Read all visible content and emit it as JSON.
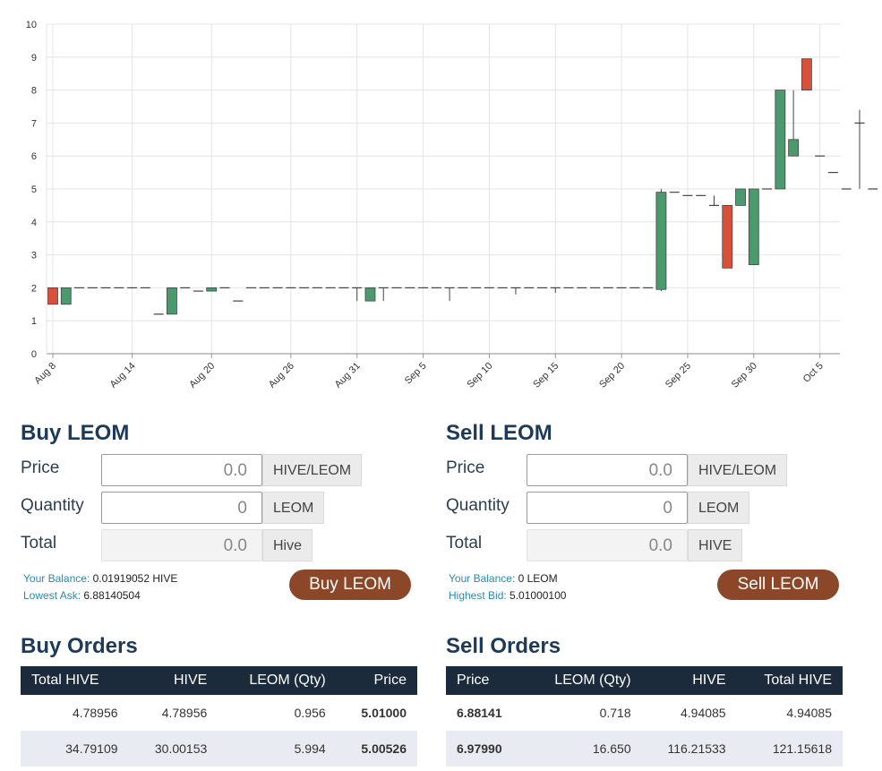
{
  "chart_data": {
    "type": "candlestick",
    "y_ticks": [
      "0",
      "1",
      "2",
      "3",
      "4",
      "5",
      "6",
      "7",
      "8",
      "9",
      "10"
    ],
    "ylim": [
      0,
      10
    ],
    "x_ticks": [
      "Aug 8",
      "Aug 14",
      "Aug 20",
      "Aug 26",
      "Aug 31",
      "Sep 5",
      "Sep 10",
      "Sep 15",
      "Sep 20",
      "Sep 25",
      "Sep 30",
      "Oct 5"
    ],
    "grid": true,
    "up_color": "#4a9a6e",
    "down_color": "#d9503a",
    "candles": [
      {
        "d": 0,
        "o": 2.0,
        "h": 2.0,
        "l": 1.5,
        "c": 1.5
      },
      {
        "d": 1,
        "o": 1.5,
        "h": 2.0,
        "l": 1.5,
        "c": 2.0
      },
      {
        "d": 2,
        "o": 2.0,
        "h": 2.0,
        "l": 2.0,
        "c": 2.0
      },
      {
        "d": 3,
        "o": 2.0,
        "h": 2.0,
        "l": 2.0,
        "c": 2.0
      },
      {
        "d": 4,
        "o": 2.0,
        "h": 2.0,
        "l": 2.0,
        "c": 2.0
      },
      {
        "d": 5,
        "o": 2.0,
        "h": 2.0,
        "l": 2.0,
        "c": 2.0
      },
      {
        "d": 6,
        "o": 2.0,
        "h": 2.0,
        "l": 2.0,
        "c": 2.0
      },
      {
        "d": 7,
        "o": 2.0,
        "h": 2.0,
        "l": 2.0,
        "c": 2.0
      },
      {
        "d": 8,
        "o": 1.2,
        "h": 1.2,
        "l": 1.2,
        "c": 1.2
      },
      {
        "d": 9,
        "o": 1.2,
        "h": 2.0,
        "l": 1.2,
        "c": 2.0
      },
      {
        "d": 10,
        "o": 2.0,
        "h": 2.0,
        "l": 2.0,
        "c": 2.0
      },
      {
        "d": 11,
        "o": 1.9,
        "h": 1.9,
        "l": 1.9,
        "c": 1.9
      },
      {
        "d": 12,
        "o": 1.9,
        "h": 2.0,
        "l": 1.9,
        "c": 2.0
      },
      {
        "d": 13,
        "o": 2.0,
        "h": 2.0,
        "l": 2.0,
        "c": 2.0
      },
      {
        "d": 14,
        "o": 1.6,
        "h": 1.6,
        "l": 1.6,
        "c": 1.6
      },
      {
        "d": 15,
        "o": 2.0,
        "h": 2.0,
        "l": 2.0,
        "c": 2.0
      },
      {
        "d": 16,
        "o": 2.0,
        "h": 2.0,
        "l": 2.0,
        "c": 2.0
      },
      {
        "d": 17,
        "o": 2.0,
        "h": 2.0,
        "l": 2.0,
        "c": 2.0
      },
      {
        "d": 18,
        "o": 2.0,
        "h": 2.0,
        "l": 2.0,
        "c": 2.0
      },
      {
        "d": 19,
        "o": 2.0,
        "h": 2.0,
        "l": 2.0,
        "c": 2.0
      },
      {
        "d": 20,
        "o": 2.0,
        "h": 2.0,
        "l": 2.0,
        "c": 2.0
      },
      {
        "d": 21,
        "o": 2.0,
        "h": 2.0,
        "l": 2.0,
        "c": 2.0
      },
      {
        "d": 22,
        "o": 2.0,
        "h": 2.0,
        "l": 2.0,
        "c": 2.0
      },
      {
        "d": 23,
        "o": 2.0,
        "h": 2.0,
        "l": 1.6,
        "c": 2.0
      },
      {
        "d": 24,
        "o": 1.6,
        "h": 2.0,
        "l": 1.6,
        "c": 2.0
      },
      {
        "d": 25,
        "o": 2.0,
        "h": 2.0,
        "l": 1.6,
        "c": 2.0
      },
      {
        "d": 26,
        "o": 2.0,
        "h": 2.0,
        "l": 2.0,
        "c": 2.0
      },
      {
        "d": 27,
        "o": 2.0,
        "h": 2.0,
        "l": 2.0,
        "c": 2.0
      },
      {
        "d": 28,
        "o": 2.0,
        "h": 2.0,
        "l": 2.0,
        "c": 2.0
      },
      {
        "d": 29,
        "o": 2.0,
        "h": 2.0,
        "l": 2.0,
        "c": 2.0
      },
      {
        "d": 30,
        "o": 2.0,
        "h": 2.0,
        "l": 1.6,
        "c": 2.0
      },
      {
        "d": 31,
        "o": 2.0,
        "h": 2.0,
        "l": 2.0,
        "c": 2.0
      },
      {
        "d": 32,
        "o": 2.0,
        "h": 2.0,
        "l": 2.0,
        "c": 2.0
      },
      {
        "d": 33,
        "o": 2.0,
        "h": 2.0,
        "l": 2.0,
        "c": 2.0
      },
      {
        "d": 34,
        "o": 2.0,
        "h": 2.0,
        "l": 2.0,
        "c": 2.0
      },
      {
        "d": 35,
        "o": 2.0,
        "h": 2.0,
        "l": 1.8,
        "c": 2.0
      },
      {
        "d": 36,
        "o": 2.0,
        "h": 2.0,
        "l": 2.0,
        "c": 2.0
      },
      {
        "d": 37,
        "o": 2.0,
        "h": 2.0,
        "l": 2.0,
        "c": 2.0
      },
      {
        "d": 38,
        "o": 2.0,
        "h": 2.0,
        "l": 1.85,
        "c": 2.0
      },
      {
        "d": 39,
        "o": 2.0,
        "h": 2.0,
        "l": 2.0,
        "c": 2.0
      },
      {
        "d": 40,
        "o": 2.0,
        "h": 2.0,
        "l": 2.0,
        "c": 2.0
      },
      {
        "d": 41,
        "o": 2.0,
        "h": 2.0,
        "l": 2.0,
        "c": 2.0
      },
      {
        "d": 42,
        "o": 2.0,
        "h": 2.0,
        "l": 2.0,
        "c": 2.0
      },
      {
        "d": 43,
        "o": 2.0,
        "h": 2.0,
        "l": 2.0,
        "c": 2.0
      },
      {
        "d": 44,
        "o": 2.0,
        "h": 2.0,
        "l": 2.0,
        "c": 2.0
      },
      {
        "d": 45,
        "o": 2.0,
        "h": 2.0,
        "l": 2.0,
        "c": 2.0
      },
      {
        "d": 46,
        "o": 1.95,
        "h": 5.0,
        "l": 1.9,
        "c": 4.9
      },
      {
        "d": 47,
        "o": 4.9,
        "h": 4.9,
        "l": 4.9,
        "c": 4.9
      },
      {
        "d": 48,
        "o": 4.8,
        "h": 4.8,
        "l": 4.8,
        "c": 4.8
      },
      {
        "d": 49,
        "o": 4.8,
        "h": 4.8,
        "l": 4.8,
        "c": 4.8
      },
      {
        "d": 50,
        "o": 4.5,
        "h": 4.8,
        "l": 4.5,
        "c": 4.5
      },
      {
        "d": 51,
        "o": 4.5,
        "h": 4.5,
        "l": 2.6,
        "c": 2.6
      },
      {
        "d": 52,
        "o": 4.5,
        "h": 5.0,
        "l": 4.5,
        "c": 5.0
      },
      {
        "d": 53,
        "o": 2.7,
        "h": 5.0,
        "l": 2.7,
        "c": 5.0
      },
      {
        "d": 54,
        "o": 5.0,
        "h": 5.0,
        "l": 5.0,
        "c": 5.0
      },
      {
        "d": 55,
        "o": 5.0,
        "h": 8.0,
        "l": 5.0,
        "c": 8.0
      },
      {
        "d": 56,
        "o": 6.0,
        "h": 8.0,
        "l": 6.0,
        "c": 6.5
      },
      {
        "d": 57,
        "o": 8.95,
        "h": 8.95,
        "l": 8.0,
        "c": 8.0
      },
      {
        "d": 58,
        "o": 6.0,
        "h": 6.0,
        "l": 6.0,
        "c": 6.0
      },
      {
        "d": 59,
        "o": 5.5,
        "h": 5.5,
        "l": 5.5,
        "c": 5.5
      },
      {
        "d": 60,
        "o": 5.0,
        "h": 5.0,
        "l": 5.0,
        "c": 5.0
      },
      {
        "d": 61,
        "o": 7.0,
        "h": 7.4,
        "l": 5.0,
        "c": 7.0
      },
      {
        "d": 62,
        "o": 5.0,
        "h": 5.0,
        "l": 5.0,
        "c": 5.0
      }
    ]
  },
  "buy": {
    "title": "Buy LEOM",
    "price_label": "Price",
    "price_value": "0.0",
    "price_unit": "HIVE/LEOM",
    "quantity_label": "Quantity",
    "quantity_value": "0",
    "quantity_unit": "LEOM",
    "total_label": "Total",
    "total_value": "0.0",
    "total_unit": "Hive",
    "balance_label": "Your Balance:",
    "balance_value": "0.01919052 HIVE",
    "ask_label": "Lowest Ask:",
    "ask_value": "6.88140504",
    "button": "Buy LEOM"
  },
  "sell": {
    "title": "Sell LEOM",
    "price_label": "Price",
    "price_value": "0.0",
    "price_unit": "HIVE/LEOM",
    "quantity_label": "Quantity",
    "quantity_value": "0",
    "quantity_unit": "LEOM",
    "total_label": "Total",
    "total_value": "0.0",
    "total_unit": "HIVE",
    "balance_label": "Your Balance:",
    "balance_value": "0 LEOM",
    "bid_label": "Highest Bid:",
    "bid_value": "5.01000100",
    "button": "Sell LEOM"
  },
  "buy_orders": {
    "title": "Buy Orders",
    "headers": [
      "Total HIVE",
      "HIVE",
      "LEOM (Qty)",
      "Price"
    ],
    "rows": [
      [
        "4.78956",
        "4.78956",
        "0.956",
        "5.01000"
      ],
      [
        "34.79109",
        "30.00153",
        "5.994",
        "5.00526"
      ]
    ]
  },
  "sell_orders": {
    "title": "Sell Orders",
    "headers": [
      "Price",
      "LEOM (Qty)",
      "HIVE",
      "Total HIVE"
    ],
    "rows": [
      [
        "6.88141",
        "0.718",
        "4.94085",
        "4.94085"
      ],
      [
        "6.97990",
        "16.650",
        "116.21533",
        "121.15618"
      ]
    ]
  }
}
